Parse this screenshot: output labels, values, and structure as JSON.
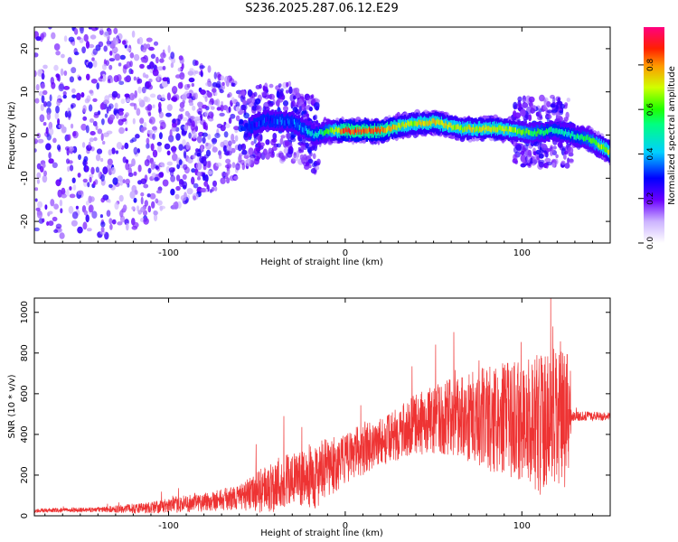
{
  "figure_title": "S236.2025.287.06.12.E29",
  "chart_data": [
    {
      "type": "heatmap",
      "title": "S236.2025.287.06.12.E29",
      "xlabel": "Height of straight line (km)",
      "ylabel": "Frequency (Hz)",
      "xlim": [
        -176,
        150
      ],
      "ylim": [
        -25,
        25
      ],
      "xticks": [
        -100,
        0,
        100
      ],
      "xtick_labels": [
        "-100",
        "0",
        "100"
      ],
      "yticks": [
        -20,
        -10,
        0,
        10,
        20
      ],
      "ytick_labels": [
        "-20",
        "-10",
        "0",
        "10",
        "20"
      ],
      "colorbar": {
        "label": "Normalized spectral amplitude",
        "range": [
          0.0,
          0.97
        ],
        "ticks": [
          0.0,
          0.2,
          0.4,
          0.6,
          0.8
        ],
        "tick_labels": [
          "0.0",
          "0.2",
          "0.4",
          "0.6",
          "0.8"
        ]
      },
      "ridge": [
        {
          "x": -60,
          "f": 1.0,
          "amp": 0.25
        },
        {
          "x": -45,
          "f": 3.5,
          "amp": 0.3
        },
        {
          "x": -30,
          "f": 3.0,
          "amp": 0.35
        },
        {
          "x": -18,
          "f": 0.0,
          "amp": 0.45
        },
        {
          "x": -10,
          "f": 1.0,
          "amp": 0.6
        },
        {
          "x": 0,
          "f": 1.0,
          "amp": 0.9
        },
        {
          "x": 20,
          "f": 1.0,
          "amp": 0.85
        },
        {
          "x": 35,
          "f": 2.5,
          "amp": 0.7
        },
        {
          "x": 50,
          "f": 3.0,
          "amp": 0.75
        },
        {
          "x": 65,
          "f": 1.5,
          "amp": 0.7
        },
        {
          "x": 85,
          "f": 1.5,
          "amp": 0.75
        },
        {
          "x": 105,
          "f": 0.5,
          "amp": 0.6
        },
        {
          "x": 118,
          "f": 1.0,
          "amp": 0.5
        },
        {
          "x": 128,
          "f": 0.0,
          "amp": 0.5
        },
        {
          "x": 138,
          "f": -1.0,
          "amp": 0.6
        },
        {
          "x": 150,
          "f": -4.0,
          "amp": 0.75
        }
      ]
    },
    {
      "type": "line",
      "series_name": "SNR",
      "color": "#ee3333",
      "xlabel": "Height of straight line (km)",
      "ylabel": "SNR (10 * v/v)",
      "xlim": [
        -176,
        150
      ],
      "ylim": [
        0,
        1070
      ],
      "xticks": [
        -100,
        0,
        100
      ],
      "xtick_labels": [
        "-100",
        "0",
        "100"
      ],
      "yticks": [
        0,
        200,
        400,
        600,
        800,
        1000
      ],
      "ytick_labels": [
        "0",
        "200",
        "400",
        "600",
        "800",
        "1000"
      ],
      "envelope": [
        {
          "x": -176,
          "mean": 25,
          "spread": 10
        },
        {
          "x": -140,
          "mean": 30,
          "spread": 12
        },
        {
          "x": -110,
          "mean": 40,
          "spread": 30
        },
        {
          "x": -80,
          "mean": 70,
          "spread": 50
        },
        {
          "x": -60,
          "mean": 90,
          "spread": 60
        },
        {
          "x": -45,
          "mean": 130,
          "spread": 120
        },
        {
          "x": -35,
          "mean": 170,
          "spread": 150
        },
        {
          "x": -25,
          "mean": 180,
          "spread": 130
        },
        {
          "x": -15,
          "mean": 200,
          "spread": 170
        },
        {
          "x": 0,
          "mean": 280,
          "spread": 120
        },
        {
          "x": 10,
          "mean": 330,
          "spread": 130
        },
        {
          "x": 25,
          "mean": 380,
          "spread": 120
        },
        {
          "x": 40,
          "mean": 450,
          "spread": 150
        },
        {
          "x": 60,
          "mean": 490,
          "spread": 190
        },
        {
          "x": 80,
          "mean": 480,
          "spread": 260
        },
        {
          "x": 100,
          "mean": 470,
          "spread": 300
        },
        {
          "x": 115,
          "mean": 450,
          "spread": 380
        },
        {
          "x": 126,
          "mean": 470,
          "spread": 330
        },
        {
          "x": 128,
          "mean": 490,
          "spread": 25
        },
        {
          "x": 150,
          "mean": 490,
          "spread": 20
        }
      ]
    }
  ]
}
